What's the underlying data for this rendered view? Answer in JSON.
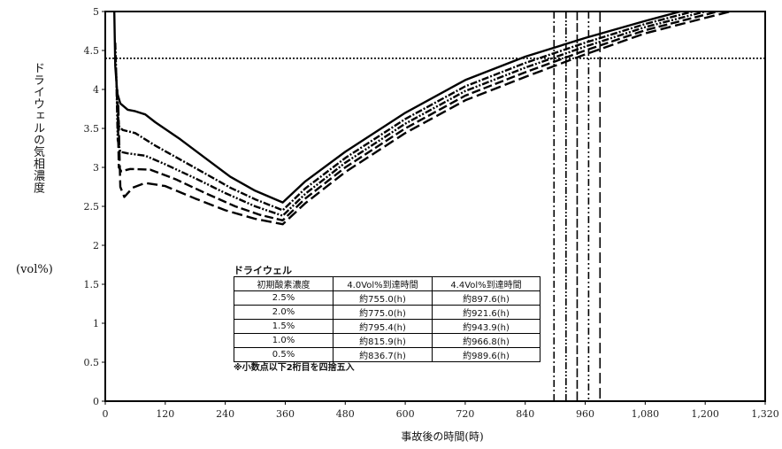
{
  "chart_data": {
    "type": "line",
    "ylabel": "ドライウェルの気相濃度",
    "yunit": "(vol%)",
    "xlabel": "事故後の時間(時)",
    "xlim": [
      0,
      1320
    ],
    "ylim": [
      0,
      5
    ],
    "xticks": [
      0,
      120,
      240,
      360,
      480,
      600,
      720,
      840,
      960,
      1080,
      1200,
      1320
    ],
    "xtick_labels": [
      "0",
      "120",
      "240",
      "360",
      "480",
      "600",
      "720",
      "840",
      "960",
      "1,080",
      "1,200",
      "1,320"
    ],
    "yticks": [
      0,
      0.5,
      1,
      1.5,
      2,
      2.5,
      3,
      3.5,
      4,
      4.5,
      5
    ],
    "ytick_labels": [
      "0",
      "0.5",
      "1",
      "1.5",
      "2",
      "2.5",
      "3",
      "3.5",
      "4",
      "4.5",
      "5"
    ],
    "reference_line_y": 4.4,
    "vertical_lines_x": [
      897.6,
      921.6,
      943.9,
      966.8,
      989.6
    ],
    "series": [
      {
        "dash": "solid",
        "points": [
          [
            18,
            5.0
          ],
          [
            20,
            4.3
          ],
          [
            24,
            3.95
          ],
          [
            30,
            3.82
          ],
          [
            45,
            3.74
          ],
          [
            60,
            3.72
          ],
          [
            80,
            3.68
          ],
          [
            100,
            3.58
          ],
          [
            150,
            3.36
          ],
          [
            200,
            3.12
          ],
          [
            250,
            2.88
          ],
          [
            300,
            2.7
          ],
          [
            355,
            2.55
          ],
          [
            400,
            2.82
          ],
          [
            480,
            3.2
          ],
          [
            600,
            3.7
          ],
          [
            720,
            4.12
          ],
          [
            840,
            4.42
          ],
          [
            960,
            4.66
          ],
          [
            1080,
            4.88
          ],
          [
            1150,
            5.0
          ]
        ]
      },
      {
        "dash": "8,2,2,2",
        "points": [
          [
            20,
            4.6
          ],
          [
            24,
            3.75
          ],
          [
            28,
            3.52
          ],
          [
            35,
            3.48
          ],
          [
            60,
            3.44
          ],
          [
            100,
            3.28
          ],
          [
            150,
            3.1
          ],
          [
            200,
            2.92
          ],
          [
            250,
            2.74
          ],
          [
            300,
            2.59
          ],
          [
            355,
            2.45
          ],
          [
            400,
            2.73
          ],
          [
            480,
            3.12
          ],
          [
            600,
            3.62
          ],
          [
            720,
            4.04
          ],
          [
            840,
            4.34
          ],
          [
            960,
            4.6
          ],
          [
            1080,
            4.84
          ],
          [
            1175,
            5.0
          ]
        ]
      },
      {
        "dash": "8,2,2,2,2,2",
        "points": [
          [
            22,
            4.2
          ],
          [
            25,
            3.35
          ],
          [
            30,
            3.2
          ],
          [
            45,
            3.18
          ],
          [
            80,
            3.15
          ],
          [
            120,
            3.04
          ],
          [
            180,
            2.86
          ],
          [
            240,
            2.67
          ],
          [
            300,
            2.5
          ],
          [
            355,
            2.38
          ],
          [
            400,
            2.66
          ],
          [
            480,
            3.06
          ],
          [
            600,
            3.56
          ],
          [
            720,
            3.98
          ],
          [
            840,
            4.28
          ],
          [
            960,
            4.55
          ],
          [
            1080,
            4.8
          ],
          [
            1200,
            5.0
          ]
        ]
      },
      {
        "dash": "10,4",
        "points": [
          [
            24,
            4.0
          ],
          [
            27,
            3.0
          ],
          [
            32,
            2.95
          ],
          [
            50,
            2.98
          ],
          [
            90,
            2.97
          ],
          [
            140,
            2.85
          ],
          [
            200,
            2.67
          ],
          [
            260,
            2.5
          ],
          [
            310,
            2.39
          ],
          [
            355,
            2.32
          ],
          [
            400,
            2.6
          ],
          [
            480,
            3.0
          ],
          [
            600,
            3.5
          ],
          [
            720,
            3.92
          ],
          [
            840,
            4.22
          ],
          [
            960,
            4.5
          ],
          [
            1080,
            4.76
          ],
          [
            1225,
            5.0
          ]
        ]
      },
      {
        "dash": "12,5",
        "points": [
          [
            26,
            3.8
          ],
          [
            30,
            2.75
          ],
          [
            38,
            2.62
          ],
          [
            55,
            2.74
          ],
          [
            80,
            2.8
          ],
          [
            120,
            2.76
          ],
          [
            180,
            2.6
          ],
          [
            240,
            2.45
          ],
          [
            300,
            2.34
          ],
          [
            355,
            2.27
          ],
          [
            400,
            2.54
          ],
          [
            480,
            2.94
          ],
          [
            600,
            3.44
          ],
          [
            720,
            3.86
          ],
          [
            840,
            4.16
          ],
          [
            960,
            4.45
          ],
          [
            1080,
            4.72
          ],
          [
            1250,
            5.0
          ]
        ]
      }
    ],
    "legend_table": {
      "title": "ドライウェル",
      "headers": [
        "初期酸素濃度",
        "4.0Vol%到達時間",
        "4.4Vol%到達時間"
      ],
      "rows": [
        [
          "2.5%",
          "約755.0(h)",
          "約897.6(h)"
        ],
        [
          "2.0%",
          "約775.0(h)",
          "約921.6(h)"
        ],
        [
          "1.5%",
          "約795.4(h)",
          "約943.9(h)"
        ],
        [
          "1.0%",
          "約815.9(h)",
          "約966.8(h)"
        ],
        [
          "0.5%",
          "約836.7(h)",
          "約989.6(h)"
        ]
      ],
      "note": "※小数点以下2桁目を四捨五入"
    }
  }
}
